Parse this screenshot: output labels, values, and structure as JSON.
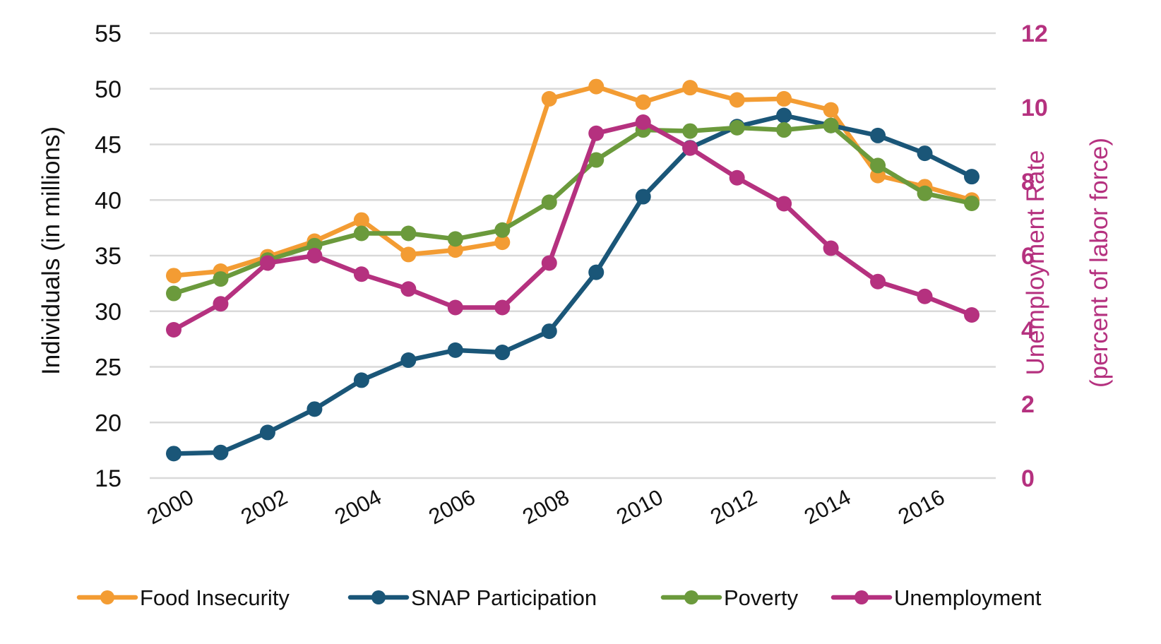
{
  "chart_data": {
    "type": "line",
    "title": "",
    "x": [
      2000,
      2001,
      2002,
      2003,
      2004,
      2005,
      2006,
      2007,
      2008,
      2009,
      2010,
      2011,
      2012,
      2013,
      2014,
      2015,
      2016,
      2017
    ],
    "x_tick_labels": [
      "2000",
      "2002",
      "2004",
      "2006",
      "2008",
      "2010",
      "2012",
      "2014",
      "2016"
    ],
    "y_left": {
      "label": "Individuals (in millions)",
      "ylim": [
        15,
        55
      ],
      "ticks": [
        "55",
        "50",
        "45",
        "40",
        "35",
        "30",
        "25",
        "20",
        "15"
      ]
    },
    "y_right": {
      "label_line1": "Unemployment Rate",
      "label_line2": "(percent of labor force)",
      "ylim": [
        0,
        12
      ],
      "ticks": [
        "12",
        "10",
        "8",
        "6",
        "4",
        "2",
        "0"
      ],
      "color": "#b5317f"
    },
    "grid": true,
    "legend_position": "bottom",
    "series": [
      {
        "name": "Food Insecurity",
        "axis": "left",
        "color": "#f39c33",
        "values": [
          33.2,
          33.6,
          34.9,
          36.3,
          38.2,
          35.1,
          35.5,
          36.2,
          49.1,
          50.2,
          48.8,
          50.1,
          49.0,
          49.1,
          48.1,
          42.2,
          41.2,
          40.0
        ]
      },
      {
        "name": "SNAP Participation",
        "axis": "left",
        "color": "#1a5678",
        "values": [
          17.2,
          17.3,
          19.1,
          21.2,
          23.8,
          25.6,
          26.5,
          26.3,
          28.2,
          33.5,
          40.3,
          44.7,
          46.6,
          47.6,
          46.7,
          45.8,
          44.2,
          42.1
        ]
      },
      {
        "name": "Poverty",
        "axis": "left",
        "color": "#6b9a3c",
        "values": [
          31.6,
          32.9,
          34.6,
          35.9,
          37.0,
          37.0,
          36.5,
          37.3,
          39.8,
          43.6,
          46.3,
          46.2,
          46.5,
          46.3,
          46.7,
          43.1,
          40.6,
          39.7
        ]
      },
      {
        "name": "Unemployment",
        "axis": "right",
        "color": "#b5317f",
        "values": [
          4.0,
          4.7,
          5.8,
          6.0,
          5.5,
          5.1,
          4.6,
          4.6,
          5.8,
          9.3,
          9.6,
          8.9,
          8.1,
          7.4,
          6.2,
          5.3,
          4.9,
          4.4
        ]
      }
    ]
  }
}
